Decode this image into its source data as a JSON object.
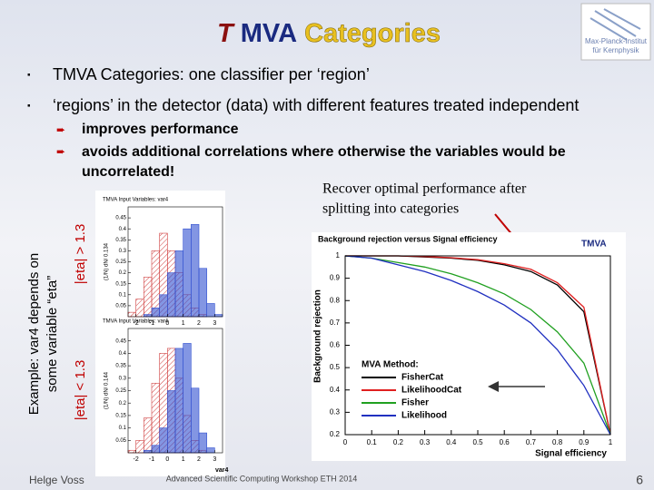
{
  "header": {
    "title_parts": [
      "T",
      "MVA",
      "Categories"
    ],
    "logo": [
      "Max-Planck-Institut",
      "für Kernphysik"
    ]
  },
  "bullets": [
    "TMVA Categories:  one classifier per ‘region’",
    "‘regions’ in the detector (data)  with different features treated independent"
  ],
  "sub_bullets": [
    [
      "improves performance"
    ],
    [
      "avoids additional correlations where otherwise the variables would be",
      "uncorrelated!"
    ]
  ],
  "annotation": [
    "Recover optimal performance after",
    "splitting into categories"
  ],
  "side_label": [
    "Example: var4 depends on",
    "some variable “eta”"
  ],
  "region_labels": [
    "|eta| > 1.3",
    "|eta| < 1.3"
  ],
  "histograms": [
    {
      "type": "histogram",
      "title": "TMVA Input Variables: var4",
      "ylabel": "(1/N) dN/ 0.134",
      "bins": [
        -2.5,
        -2,
        -1.5,
        -1,
        -0.5,
        0,
        0.5,
        1,
        1.5,
        2,
        2.5,
        3,
        3.5
      ],
      "series": [
        {
          "color": "#d04040",
          "values": [
            0.02,
            0.08,
            0.18,
            0.3,
            0.38,
            0.3,
            0.2,
            0.1,
            0.04,
            0.01,
            0,
            0
          ]
        },
        {
          "color": "#3050d0",
          "values": [
            0,
            0,
            0.01,
            0.04,
            0.1,
            0.2,
            0.3,
            0.4,
            0.42,
            0.22,
            0.06,
            0.01
          ]
        }
      ],
      "xlim": [
        -2.5,
        3.5
      ],
      "xticks": [
        -2,
        -1,
        0,
        1,
        2,
        3
      ],
      "ylim": [
        0,
        0.5
      ],
      "yticks": [
        0.05,
        0.1,
        0.15,
        0.2,
        0.25,
        0.3,
        0.35,
        0.4,
        0.45
      ]
    },
    {
      "type": "histogram",
      "title": "TMVA Input Variables: var4",
      "ylabel": "(1/N) dN/ 0.144",
      "xlabel": "var4",
      "bins": [
        -2.5,
        -2,
        -1.5,
        -1,
        -0.5,
        0,
        0.5,
        1,
        1.5,
        2,
        2.5,
        3,
        3.5
      ],
      "series": [
        {
          "color": "#d04040",
          "values": [
            0.01,
            0.05,
            0.14,
            0.28,
            0.4,
            0.42,
            0.3,
            0.15,
            0.05,
            0.01,
            0,
            0
          ]
        },
        {
          "color": "#3050d0",
          "values": [
            0,
            0,
            0.01,
            0.03,
            0.1,
            0.25,
            0.42,
            0.44,
            0.26,
            0.08,
            0.02,
            0
          ]
        }
      ],
      "xlim": [
        -2.5,
        3.5
      ],
      "xticks": [
        -2,
        -1,
        0,
        1,
        2,
        3
      ],
      "ylim": [
        0,
        0.5
      ],
      "yticks": [
        0.05,
        0.1,
        0.15,
        0.2,
        0.25,
        0.3,
        0.35,
        0.4,
        0.45
      ]
    }
  ],
  "roc": {
    "type": "line",
    "title": "Background rejection versus Signal efficiency",
    "xlabel": "Signal efficiency",
    "ylabel": "Background rejection",
    "legend_title": "MVA Method:",
    "x": [
      0,
      0.1,
      0.2,
      0.3,
      0.4,
      0.5,
      0.6,
      0.7,
      0.8,
      0.9,
      1
    ],
    "series": [
      {
        "name": "FisherCat",
        "color": "#000000",
        "values": [
          1,
          1,
          1,
          0.995,
          0.99,
          0.98,
          0.96,
          0.93,
          0.87,
          0.75,
          0.2
        ]
      },
      {
        "name": "LikelihoodCat",
        "color": "#e02020",
        "values": [
          1,
          1,
          1,
          0.997,
          0.992,
          0.983,
          0.965,
          0.94,
          0.88,
          0.77,
          0.2
        ]
      },
      {
        "name": "Fisher",
        "color": "#20a020",
        "values": [
          1,
          0.99,
          0.97,
          0.95,
          0.92,
          0.88,
          0.83,
          0.76,
          0.66,
          0.52,
          0.2
        ]
      },
      {
        "name": "Likelihood",
        "color": "#2030c0",
        "values": [
          1,
          0.99,
          0.96,
          0.93,
          0.89,
          0.84,
          0.78,
          0.7,
          0.58,
          0.42,
          0.2
        ]
      }
    ],
    "xlim": [
      0,
      1
    ],
    "xticks": [
      0,
      0.1,
      0.2,
      0.3,
      0.4,
      0.5,
      0.6,
      0.7,
      0.8,
      0.9,
      1
    ],
    "ylim": [
      0.2,
      1
    ],
    "yticks": [
      0.2,
      0.3,
      0.4,
      0.5,
      0.6,
      0.7,
      0.8,
      0.9,
      1
    ]
  },
  "footer": {
    "author": "Helge Voss",
    "event": "Advanced Scientific Computing Workshop ETH 2014",
    "page": "6"
  }
}
